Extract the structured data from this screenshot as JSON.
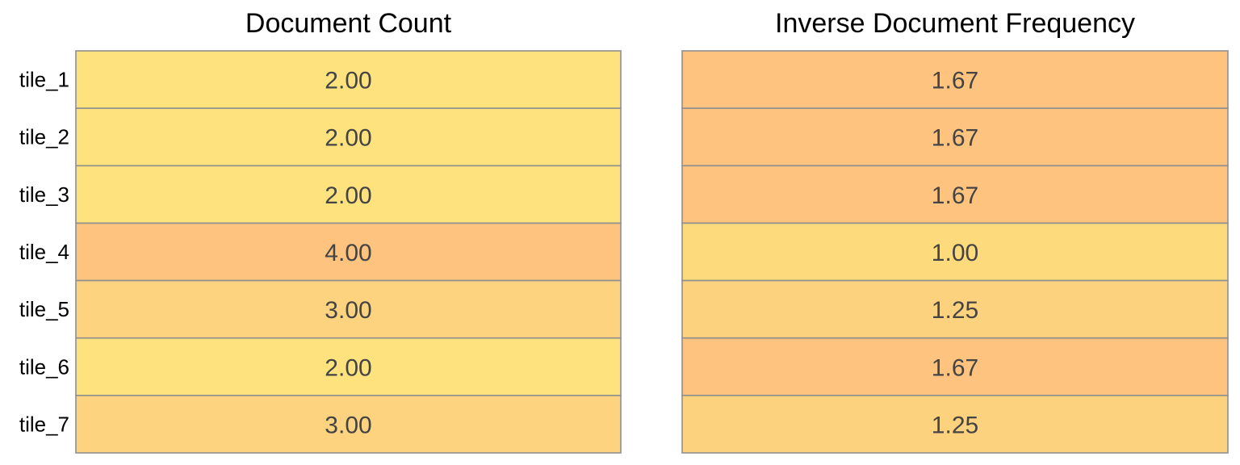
{
  "chart_data": [
    {
      "type": "heatmap",
      "title": "Document Count",
      "rows": [
        "tile_1",
        "tile_2",
        "tile_3",
        "tile_4",
        "tile_5",
        "tile_6",
        "tile_7"
      ],
      "values": [
        2.0,
        2.0,
        2.0,
        4.0,
        3.0,
        2.0,
        3.0
      ],
      "value_labels": [
        "2.00",
        "2.00",
        "2.00",
        "4.00",
        "3.00",
        "2.00",
        "3.00"
      ],
      "color_low": "#fde27e",
      "color_high": "#fec37f",
      "grid": true
    },
    {
      "type": "heatmap",
      "title": "Inverse Document Frequency",
      "rows": [
        "tile_1",
        "tile_2",
        "tile_3",
        "tile_4",
        "tile_5",
        "tile_6",
        "tile_7"
      ],
      "values": [
        1.67,
        1.67,
        1.67,
        1.0,
        1.25,
        1.67,
        1.25
      ],
      "value_labels": [
        "1.67",
        "1.67",
        "1.67",
        "1.00",
        "1.25",
        "1.67",
        "1.25"
      ],
      "color_low": "#fddb7d",
      "color_high": "#fec37f",
      "grid": true
    }
  ],
  "colors": {
    "cell_border": "#8f8f8f",
    "value_text": "#444444",
    "label_text": "#000000"
  }
}
